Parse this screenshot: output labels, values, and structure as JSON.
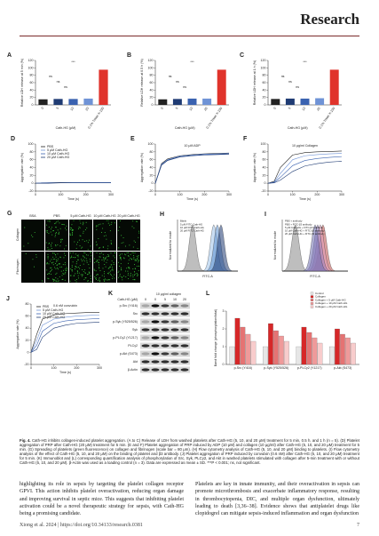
{
  "header": {
    "journal": "Research"
  },
  "figure": {
    "A": {
      "type": "bar",
      "label": "A",
      "ylabel": "Relative LDH release at 5 min (%)",
      "xlabel": "Cath-HG (μM)",
      "categories": [
        "0",
        "5",
        "10",
        "20",
        "0.1% Triton X-100"
      ],
      "values": [
        15,
        16,
        16,
        17,
        95
      ],
      "colors": [
        "#222222",
        "#1f3b73",
        "#3a62b0",
        "#6f93d6",
        "#e0332b"
      ],
      "ylim": [
        0,
        120
      ],
      "yticks": [
        0,
        20,
        40,
        60,
        80,
        100,
        120
      ],
      "annotations": [
        "ns",
        "ns",
        "ns",
        "***"
      ]
    },
    "B": {
      "type": "bar",
      "label": "B",
      "ylabel": "Relative LDH release at 0.5 h (%)",
      "xlabel": "Cath-HG (μM)",
      "categories": [
        "0",
        "5",
        "10",
        "20",
        "0.1% Triton X-100"
      ],
      "values": [
        15,
        16,
        17,
        17,
        95
      ],
      "colors": [
        "#222222",
        "#1f3b73",
        "#3a62b0",
        "#6f93d6",
        "#e0332b"
      ],
      "ylim": [
        0,
        120
      ],
      "yticks": [
        0,
        20,
        40,
        60,
        80,
        100,
        120
      ],
      "annotations": [
        "ns",
        "ns",
        "ns",
        "***"
      ]
    },
    "C": {
      "type": "bar",
      "label": "C",
      "ylabel": "Relative LDH release at 1 h (%)",
      "xlabel": "Cath-HG (μM)",
      "categories": [
        "0",
        "5",
        "10",
        "20",
        "0.1% Triton X-100"
      ],
      "values": [
        16,
        17,
        17,
        18,
        95
      ],
      "colors": [
        "#222222",
        "#1f3b73",
        "#3a62b0",
        "#6f93d6",
        "#e0332b"
      ],
      "ylim": [
        0,
        120
      ],
      "yticks": [
        0,
        20,
        40,
        60,
        80,
        100,
        120
      ],
      "annotations": [
        "ns",
        "ns",
        "ns",
        "***"
      ]
    },
    "D": {
      "type": "line",
      "label": "D",
      "ylabel": "Aggregation rate (%)",
      "xlabel": "Time (s)",
      "x": [
        0,
        25,
        50,
        100,
        150,
        200,
        250,
        300
      ],
      "ylim": [
        -20,
        100
      ],
      "yticks": [
        -20,
        0,
        20,
        40,
        60,
        80,
        100
      ],
      "xlim": [
        0,
        300
      ],
      "xticks": [
        0,
        100,
        200,
        300
      ],
      "series": [
        {
          "name": "PBS",
          "color": "#222222",
          "values": [
            0,
            1,
            1,
            2,
            2,
            2,
            2,
            2
          ]
        },
        {
          "name": "5 μM Cath-HG",
          "color": "#6f93d6",
          "values": [
            0,
            1,
            1,
            1,
            2,
            2,
            2,
            2
          ]
        },
        {
          "name": "10 μM Cath-HG",
          "color": "#3a62b0",
          "values": [
            0,
            0,
            1,
            1,
            1,
            1,
            1,
            1
          ]
        },
        {
          "name": "20 μM Cath-HG",
          "color": "#1f3b73",
          "values": [
            0,
            0,
            0,
            1,
            1,
            1,
            1,
            1
          ]
        }
      ]
    },
    "E": {
      "type": "line",
      "label": "E",
      "annotation": "10 μM ADP",
      "ylabel": "Aggregation rate (%)",
      "xlabel": "Time (s)",
      "x": [
        0,
        25,
        50,
        100,
        150,
        200,
        250,
        300
      ],
      "ylim": [
        -20,
        100
      ],
      "yticks": [
        -20,
        0,
        20,
        40,
        60,
        80,
        100
      ],
      "xlim": [
        0,
        300
      ],
      "xticks": [
        0,
        100,
        200,
        300
      ],
      "series": [
        {
          "color": "#222222",
          "values": [
            0,
            50,
            62,
            70,
            73,
            75,
            76,
            77
          ]
        },
        {
          "color": "#6f93d6",
          "values": [
            0,
            48,
            60,
            69,
            72,
            74,
            75,
            76
          ]
        },
        {
          "color": "#3a62b0",
          "values": [
            0,
            47,
            59,
            68,
            71,
            73,
            74,
            75
          ]
        },
        {
          "color": "#1f3b73",
          "values": [
            0,
            46,
            58,
            67,
            70,
            72,
            73,
            74
          ]
        }
      ]
    },
    "F": {
      "type": "line",
      "label": "F",
      "annotation": "10 μg/ml Collagen",
      "ylabel": "Aggregation rate (%)",
      "xlabel": "Time (s)",
      "x": [
        0,
        25,
        50,
        100,
        150,
        200,
        250,
        300
      ],
      "ylim": [
        -20,
        100
      ],
      "yticks": [
        -20,
        0,
        20,
        40,
        60,
        80,
        100
      ],
      "xlim": [
        0,
        300
      ],
      "xticks": [
        0,
        100,
        200,
        300
      ],
      "series": [
        {
          "color": "#222222",
          "values": [
            0,
            5,
            40,
            72,
            78,
            80,
            81,
            82
          ]
        },
        {
          "color": "#6f93d6",
          "values": [
            0,
            3,
            25,
            60,
            70,
            73,
            75,
            76
          ]
        },
        {
          "color": "#3a62b0",
          "values": [
            0,
            2,
            15,
            45,
            58,
            63,
            66,
            68
          ]
        },
        {
          "color": "#1f3b73",
          "values": [
            0,
            1,
            8,
            30,
            44,
            50,
            54,
            56
          ]
        }
      ]
    },
    "G": {
      "label": "G",
      "columns": [
        "BSA",
        "PBS",
        "5 μM Cath-HG",
        "10 μM Cath-HG",
        "20 μM Cath-HG"
      ],
      "rows": [
        "Collagen",
        "Fibrinogen"
      ]
    },
    "H": {
      "label": "H",
      "xlabel": "FITC-A",
      "ylabel": "Normalized to mode",
      "legend": [
        "Blank",
        "5 μM FITC-Cath-HG",
        "10 μM FITC-Cath-HG",
        "20 μM FITC-Cath-HG"
      ]
    },
    "I": {
      "label": "I",
      "xlabel": "FITC-A",
      "ylabel": "Normalized to mode",
      "legend": [
        "PBS + antibody",
        "PBS + FITC-β3 antibody",
        "5 μM Cath-HG + FITC-β3 antibody",
        "10 μM Cath-HG + FITC-β3 antibody",
        "20 μM Cath-HG + FITC-β3 antibody"
      ]
    },
    "J": {
      "type": "line",
      "label": "J",
      "annotation": "0.6 nM convulxin",
      "ylabel": "Aggregation rate (%)",
      "xlabel": "Time (s)",
      "x": [
        0,
        25,
        50,
        100,
        150,
        200,
        250,
        300
      ],
      "ylim": [
        -20,
        80
      ],
      "yticks": [
        -20,
        0,
        20,
        40,
        60,
        80
      ],
      "xlim": [
        0,
        300
      ],
      "xticks": [
        0,
        100,
        200,
        300
      ],
      "series": [
        {
          "name": "PBS",
          "color": "#222222",
          "values": [
            0,
            30,
            55,
            62,
            64,
            65,
            66,
            66
          ]
        },
        {
          "name": "5 μM Cath-HG",
          "color": "#6f93d6",
          "values": [
            0,
            20,
            45,
            55,
            58,
            60,
            61,
            62
          ]
        },
        {
          "name": "10 μM Cath-HG",
          "color": "#3a62b0",
          "values": [
            0,
            12,
            35,
            48,
            52,
            54,
            55,
            56
          ]
        },
        {
          "name": "20 μM Cath-HG",
          "color": "#1f3b73",
          "values": [
            0,
            5,
            25,
            40,
            45,
            48,
            49,
            50
          ]
        }
      ]
    },
    "K": {
      "label": "K",
      "treatment": "10 μg/ml collagen",
      "dose_label": "Cath-HG (μM)",
      "doses": [
        "0",
        "0",
        "5",
        "10",
        "20"
      ],
      "bands": [
        "p-Src (Y416)",
        "Src",
        "p-Syk (Y525/526)",
        "Syk",
        "p-PLCγ2 (Y1217)",
        "PLCγ2",
        "p-Akt (S473)",
        "Akt",
        "β-Actin"
      ]
    },
    "L": {
      "type": "grouped-bar",
      "label": "L",
      "ylabel": "Band fold change (phosphorylation/total)",
      "categories": [
        "p-Src (Y416)",
        "p-Syk (Y525/526)",
        "p-PLCγ2 (Y1217)",
        "p-Akt (S473)"
      ],
      "ylim": [
        0,
        3
      ],
      "yticks": [
        0,
        1,
        2,
        3
      ],
      "series": [
        {
          "name": "Control",
          "color": "#e6e6e6",
          "values": [
            1,
            1,
            1,
            1
          ]
        },
        {
          "name": "Collagen",
          "color": "#d62728",
          "values": [
            2.6,
            2.3,
            2.1,
            2.0
          ]
        },
        {
          "name": "Collagen + 5 μM Cath-HG",
          "color": "#e57373",
          "values": [
            2.1,
            1.9,
            1.8,
            1.7
          ]
        },
        {
          "name": "Collagen + 10 μM Cath-HG",
          "color": "#ef9a9a",
          "values": [
            1.7,
            1.6,
            1.5,
            1.5
          ]
        },
        {
          "name": "Collagen + 20 μM Cath-HG",
          "color": "#f8cccc",
          "values": [
            1.3,
            1.3,
            1.2,
            1.2
          ]
        }
      ]
    }
  },
  "caption": {
    "label": "Fig. 4.",
    "text": "Cath-HG inhibits collagen-induced platelet aggregation. (A to C) Release of LDH from washed platelets after Cath-HG (5, 10, and 20 μM) treatment for 5 min, 0.5 h, and 1 h (n = 5). (D) Platelet aggregation of PRP after Cath-HG (20 μM) treatment for 5 min. (E and F) Platelet aggregation of PRP induced by ADP (10 μM) and collagen (10 μg/ml) after Cath-HG (5, 10, and 20 μM) treatment for 5 min. (G) Spreading of platelets (green fluorescence) on collagen and fibrinogen (scale bar = 80 μm). (H) Flow cytometry analysis of Cath-HG (5, 10, and 20 μM) binding to platelets. (I) Flow cytometry analysis of the effect of Cath-HG (5, 10, and 20 μM) on the binding of platelet and β3 antibody. (J) Platelet aggregation of PRP induced by convulxin (0.6 nM) after Cath-HG (5, 10, and 20 μM) treatment for 5 min. (K) Immunoblot and (L) corresponding quantification analysis of phosphorylation of Src, Syk, PLCγ2, and Akt in washed platelets stimulated with collagen after 5-min treatment with or without Cath-HG (5, 10, and 20 μM). β-Actin was used as a loading control (n = 3). Data are expressed as mean ± SD. ***P < 0.001; ns, not significant."
  },
  "body": {
    "left": "highlighting its role in sepsis by targeting the platelet collagen receptor GPVI. This action inhibits platelet overactivation, reducing organ damage and improving survival in septic mice. This suggests that inhibiting platelet activation could be a novel therapeutic strategy for sepsis, with Cath-HG being a promising candidate.",
    "right": "Platelets are key in innate immunity, and their overactivation in sepsis can promote microthrombosis and exacerbate inflammatory response, resulting in thrombocytopenia, DIC, and multiple organ dysfunction, ultimately leading to death [3,36–38]. Evidence shows that antiplatelet drugs like clopidogrel can mitigate sepsis-induced inflammation and organ dysfunction"
  },
  "footer": {
    "citation": "Xiong et al. 2024 | https://doi.org/10.34133/research.0381",
    "page": "7"
  }
}
